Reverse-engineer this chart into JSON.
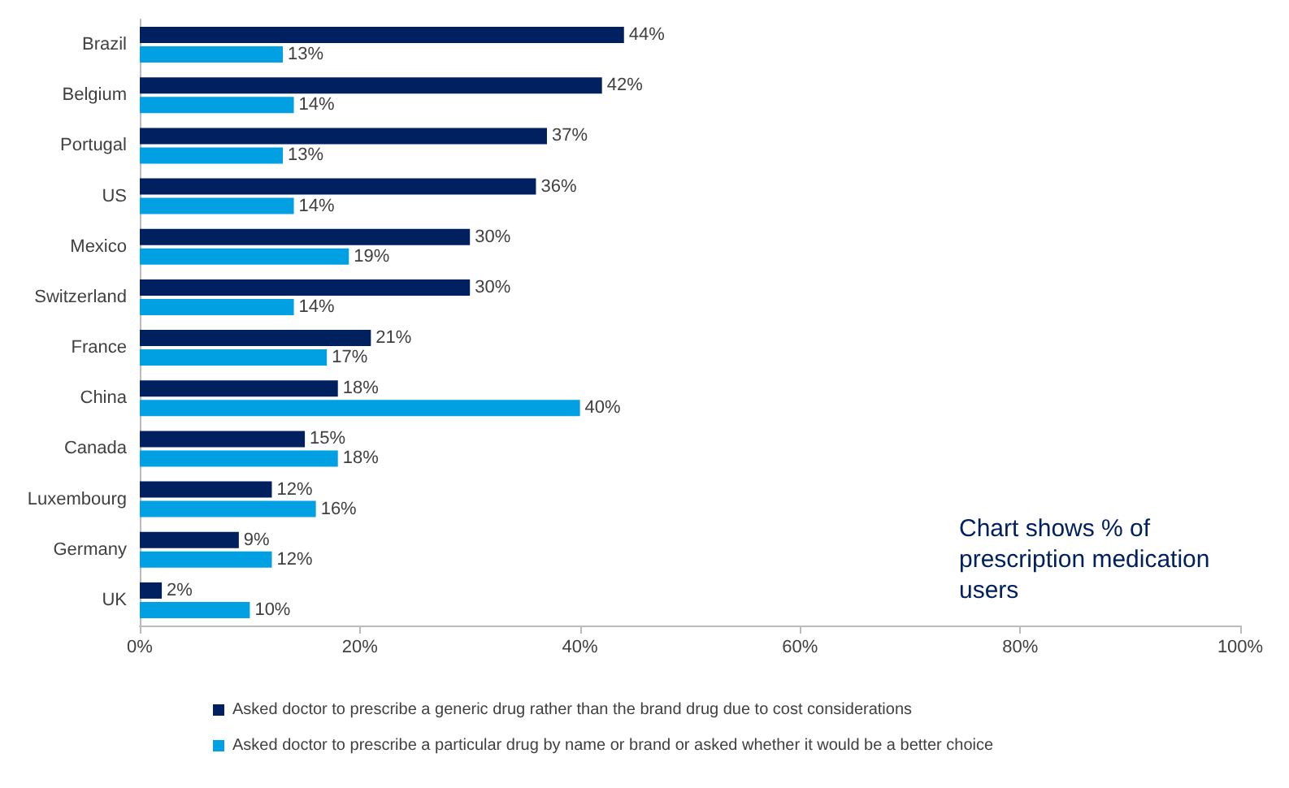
{
  "chart_data": {
    "type": "bar",
    "orientation": "horizontal",
    "categories": [
      "Brazil",
      "Belgium",
      "Portugal",
      "US",
      "Mexico",
      "Switzerland",
      "France",
      "China",
      "Canada",
      "Luxembourg",
      "Germany",
      "UK"
    ],
    "series": [
      {
        "name": "Asked doctor to prescribe a generic drug rather than the brand drug due to cost considerations",
        "color": "#002060",
        "values": [
          44,
          42,
          37,
          36,
          30,
          30,
          21,
          18,
          15,
          12,
          9,
          2
        ],
        "value_labels": [
          "44%",
          "42%",
          "37%",
          "36%",
          "30%",
          "30%",
          "21%",
          "18%",
          "15%",
          "12%",
          "9%",
          "2%"
        ]
      },
      {
        "name": "Asked doctor to prescribe a particular drug by name or brand or asked whether it would be a better choice",
        "color": "#00a0e3",
        "values": [
          13,
          14,
          13,
          14,
          19,
          14,
          17,
          40,
          18,
          16,
          12,
          10
        ],
        "value_labels": [
          "13%",
          "14%",
          "13%",
          "14%",
          "19%",
          "14%",
          "17%",
          "40%",
          "18%",
          "16%",
          "12%",
          "10%"
        ]
      }
    ],
    "xlim": [
      0,
      100
    ],
    "xticks": [
      {
        "value": 0,
        "label": "0%"
      },
      {
        "value": 20,
        "label": "20%"
      },
      {
        "value": 40,
        "label": "40%"
      },
      {
        "value": 60,
        "label": "60%"
      },
      {
        "value": 80,
        "label": "80%"
      },
      {
        "value": 100,
        "label": "100%"
      }
    ],
    "annotations": [
      "Chart shows % of prescription medication users"
    ],
    "legend": "bottom",
    "grid": false
  }
}
